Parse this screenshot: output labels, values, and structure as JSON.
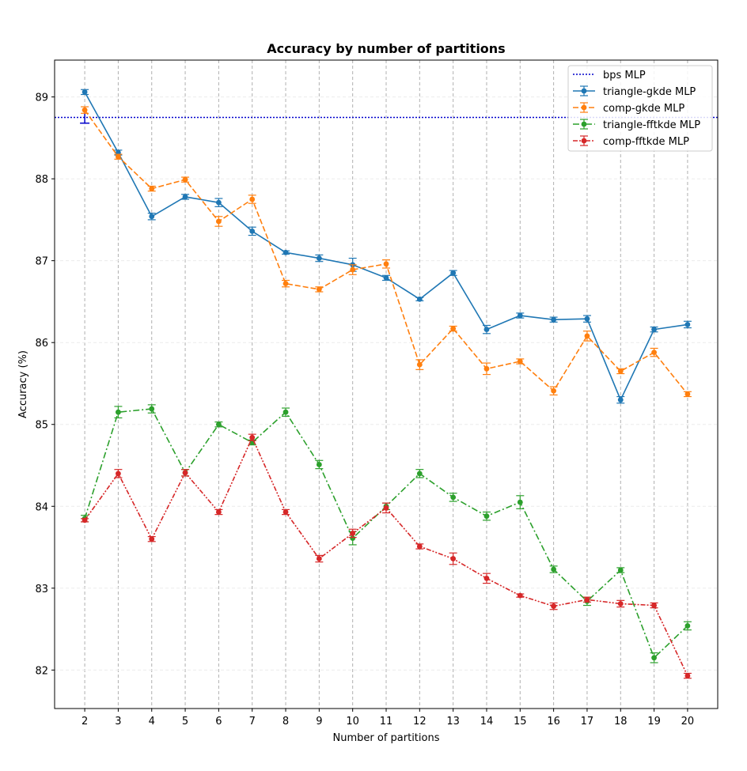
{
  "chart_data": {
    "type": "line",
    "title": "Accuracy by number of partitions",
    "xlabel": "Number of partitions",
    "ylabel": "Accuracy (%)",
    "x": [
      2,
      3,
      4,
      5,
      6,
      7,
      8,
      9,
      10,
      11,
      12,
      13,
      14,
      15,
      16,
      17,
      18,
      19,
      20
    ],
    "xlim": [
      1.1,
      20.9
    ],
    "ylim": [
      81.53,
      89.45
    ],
    "yticks": [
      82,
      83,
      84,
      85,
      86,
      87,
      88,
      89
    ],
    "grid": "x dashed",
    "legend_position": "top-right",
    "reference_line": {
      "name": "bps MLP",
      "value": 88.75,
      "error": 0.07,
      "error_x": 2,
      "color": "#0000cc",
      "style": "dotted"
    },
    "series": [
      {
        "name": "triangle-gkde MLP",
        "color": "#1f77b4",
        "style": "solid",
        "values": [
          89.06,
          88.32,
          87.54,
          87.78,
          87.71,
          87.36,
          87.1,
          87.03,
          86.95,
          86.79,
          86.53,
          86.85,
          86.16,
          86.33,
          86.28,
          86.29,
          85.3,
          86.16,
          86.22
        ],
        "errors": [
          0.03,
          0.03,
          0.04,
          0.03,
          0.05,
          0.05,
          0.02,
          0.04,
          0.08,
          0.03,
          0.02,
          0.03,
          0.05,
          0.03,
          0.03,
          0.04,
          0.04,
          0.03,
          0.04
        ]
      },
      {
        "name": "comp-gkde MLP",
        "color": "#ff7f0e",
        "style": "dashed",
        "values": [
          88.84,
          88.27,
          87.88,
          87.99,
          87.48,
          87.75,
          86.72,
          86.65,
          86.89,
          86.96,
          85.73,
          86.17,
          85.68,
          85.77,
          85.41,
          86.08,
          85.65,
          85.88,
          85.37
        ],
        "errors": [
          0.04,
          0.03,
          0.03,
          0.03,
          0.06,
          0.05,
          0.04,
          0.03,
          0.06,
          0.05,
          0.06,
          0.03,
          0.07,
          0.03,
          0.05,
          0.06,
          0.03,
          0.05,
          0.03
        ]
      },
      {
        "name": "triangle-fftkde MLP",
        "color": "#2ca02c",
        "style": "dashdot",
        "values": [
          83.85,
          85.15,
          85.19,
          84.41,
          85.0,
          84.78,
          85.15,
          84.51,
          83.61,
          84.0,
          84.4,
          84.11,
          83.88,
          84.05,
          83.23,
          82.84,
          83.22,
          82.15,
          82.54
        ],
        "errors": [
          0.04,
          0.07,
          0.05,
          0.04,
          0.03,
          0.03,
          0.05,
          0.05,
          0.08,
          0.04,
          0.05,
          0.05,
          0.05,
          0.08,
          0.04,
          0.05,
          0.03,
          0.06,
          0.05
        ]
      },
      {
        "name": "comp-fftkde MLP",
        "color": "#d62728",
        "style": "dashdotdot",
        "values": [
          83.83,
          84.4,
          83.6,
          84.41,
          83.93,
          84.84,
          83.93,
          83.36,
          83.67,
          83.98,
          83.51,
          83.36,
          83.12,
          82.91,
          82.78,
          82.86,
          82.81,
          82.79,
          81.93
        ],
        "errors": [
          0.02,
          0.05,
          0.03,
          0.04,
          0.03,
          0.04,
          0.03,
          0.04,
          0.05,
          0.06,
          0.03,
          0.07,
          0.06,
          0.02,
          0.04,
          0.03,
          0.04,
          0.03,
          0.03
        ]
      }
    ]
  }
}
